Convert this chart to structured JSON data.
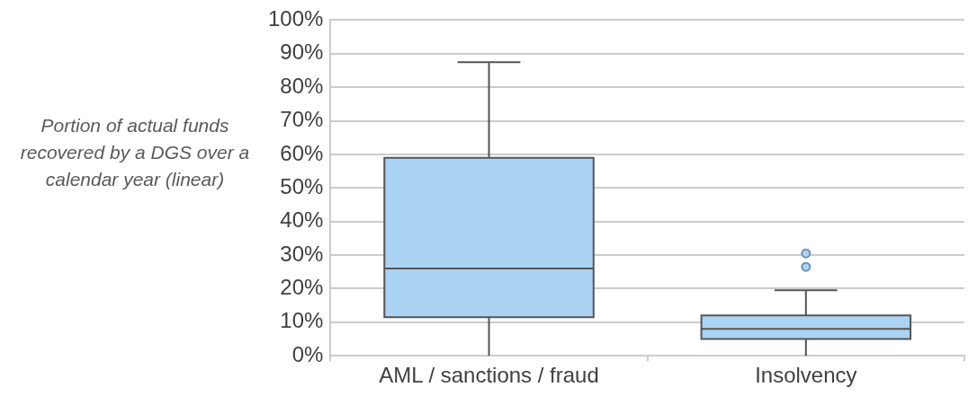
{
  "chart_data": {
    "type": "box",
    "ylabel": "Portion of actual funds recovered by a DGS over a calendar year (linear)",
    "categories": [
      "AML / sanctions / fraud",
      "Insolvency"
    ],
    "boxes": [
      {
        "low": 0,
        "q1": 11.5,
        "median": 26,
        "q3": 59,
        "high": 87.5
      },
      {
        "low": 0,
        "q1": 5,
        "median": 8,
        "q3": 12,
        "high": 19.5,
        "outliers": [
          26.5,
          30.5
        ]
      }
    ],
    "color": "#abd3f3",
    "ylim": [
      0,
      100
    ],
    "yticks": [
      {
        "value": 0,
        "label": "0%"
      },
      {
        "value": 10,
        "label": "10%"
      },
      {
        "value": 20,
        "label": "20%"
      },
      {
        "value": 30,
        "label": "30%"
      },
      {
        "value": 40,
        "label": "40%"
      },
      {
        "value": 50,
        "label": "50%"
      },
      {
        "value": 60,
        "label": "60%"
      },
      {
        "value": 70,
        "label": "70%"
      },
      {
        "value": 80,
        "label": "80%"
      },
      {
        "value": 90,
        "label": "90%"
      },
      {
        "value": 100,
        "label": "100%"
      }
    ],
    "grid": "y"
  }
}
